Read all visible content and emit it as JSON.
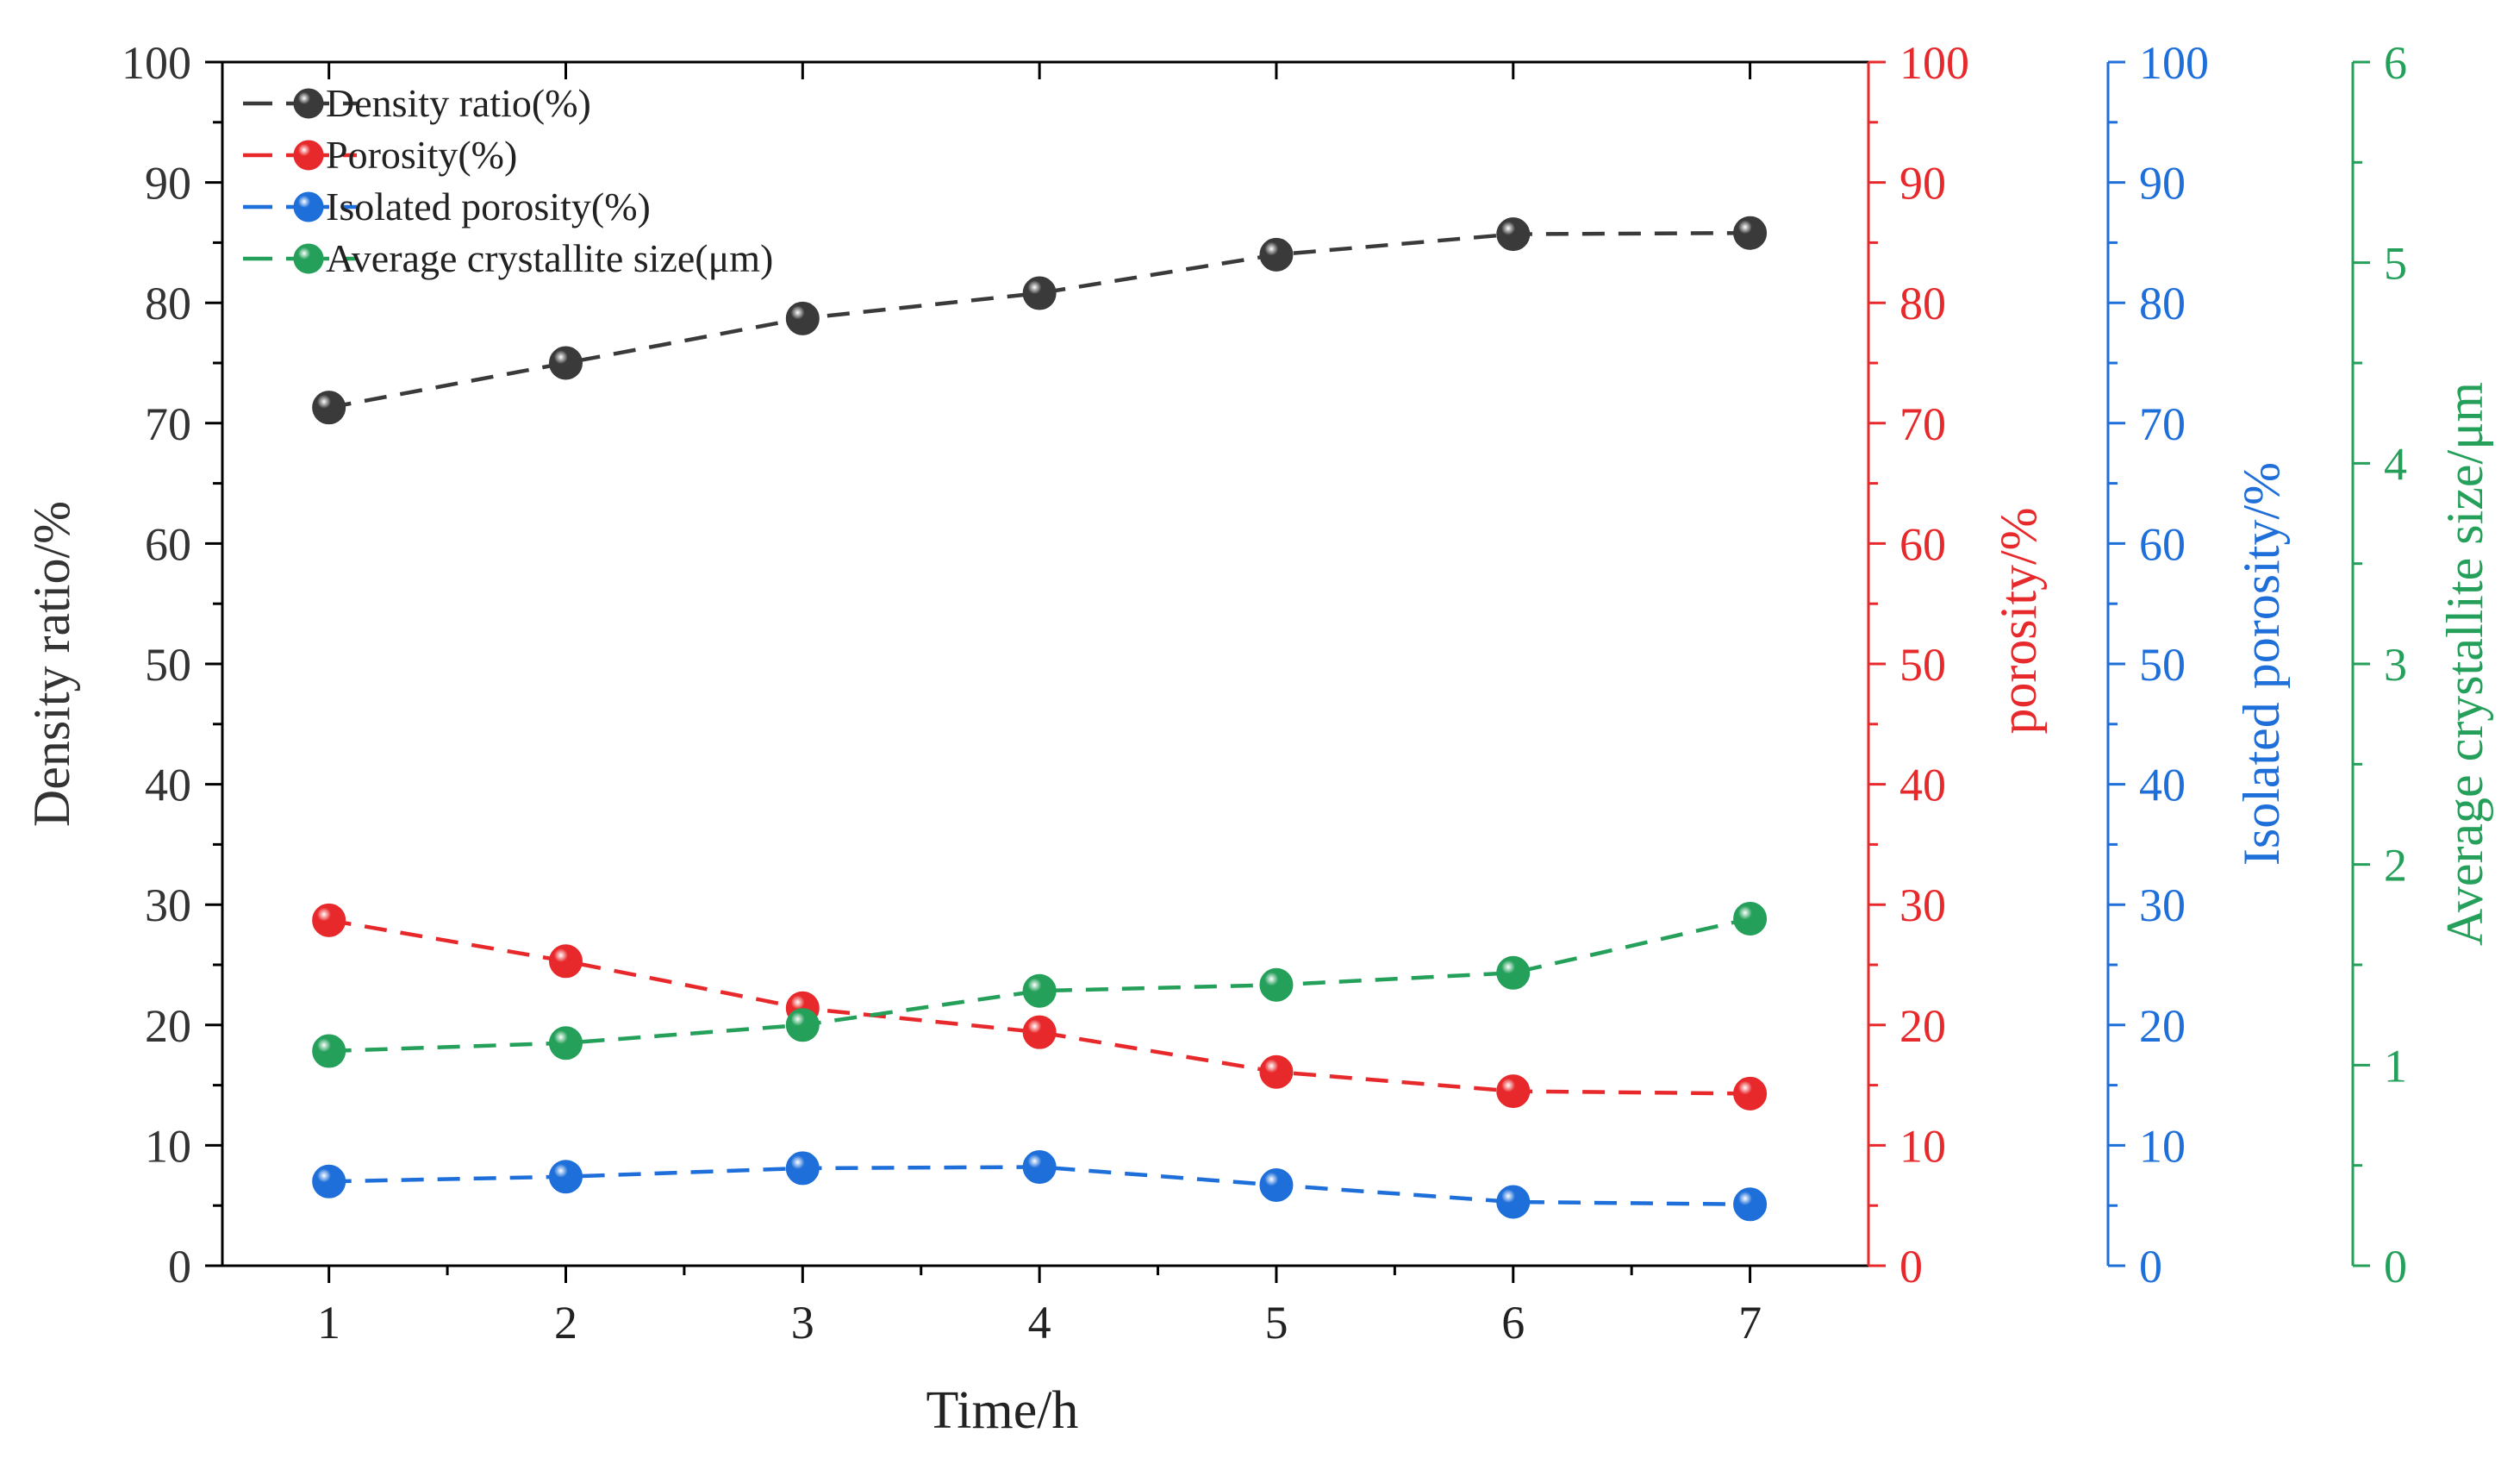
{
  "chart_data": {
    "type": "line",
    "x": [
      1,
      2,
      3,
      4,
      5,
      6,
      7
    ],
    "xlabel": "Time/h",
    "xlim": [
      0.55,
      7.5
    ],
    "xticks": [
      1,
      2,
      3,
      4,
      5,
      6,
      7
    ],
    "axes": [
      {
        "id": "density",
        "label": "Density ratio/%",
        "position": "left",
        "color": "#3a3a3a",
        "ylim": [
          0,
          100
        ],
        "ticks": [
          0,
          10,
          20,
          30,
          40,
          50,
          60,
          70,
          80,
          90,
          100
        ]
      },
      {
        "id": "porosity",
        "label": "porosity/%",
        "position": "right",
        "color": "#e8292b",
        "ylim": [
          0,
          100
        ],
        "ticks": [
          0,
          10,
          20,
          30,
          40,
          50,
          60,
          70,
          80,
          90,
          100
        ]
      },
      {
        "id": "isolated",
        "label": "Isolated porosity/%",
        "position": "right-offset-1",
        "color": "#1e6fd9",
        "ylim": [
          0,
          100
        ],
        "ticks": [
          0,
          10,
          20,
          30,
          40,
          50,
          60,
          70,
          80,
          90,
          100
        ]
      },
      {
        "id": "crystallite",
        "label": "Average crystallite size/μm",
        "position": "right-offset-2",
        "color": "#25a05a",
        "ylim": [
          0,
          6
        ],
        "ticks": [
          0,
          1,
          2,
          3,
          4,
          5,
          6
        ]
      }
    ],
    "series": [
      {
        "name": "Density ratio(%)",
        "axis": "density",
        "color": "#3a3a3a",
        "values": [
          71.3,
          75.0,
          78.7,
          80.8,
          84.0,
          85.7,
          85.8
        ]
      },
      {
        "name": "Porosity(%)",
        "axis": "porosity",
        "color": "#e8292b",
        "values": [
          28.7,
          25.3,
          21.4,
          19.4,
          16.1,
          14.5,
          14.3
        ]
      },
      {
        "name": "Isolated porosity(%)",
        "axis": "isolated",
        "color": "#1e6fd9",
        "values": [
          7.0,
          7.4,
          8.1,
          8.2,
          6.7,
          5.3,
          5.1
        ]
      },
      {
        "name": "Average crystallite size(μm)",
        "axis": "crystallite",
        "color": "#25a05a",
        "values": [
          1.07,
          1.11,
          1.2,
          1.37,
          1.4,
          1.46,
          1.73
        ]
      }
    ],
    "legend_position": "top-left"
  }
}
